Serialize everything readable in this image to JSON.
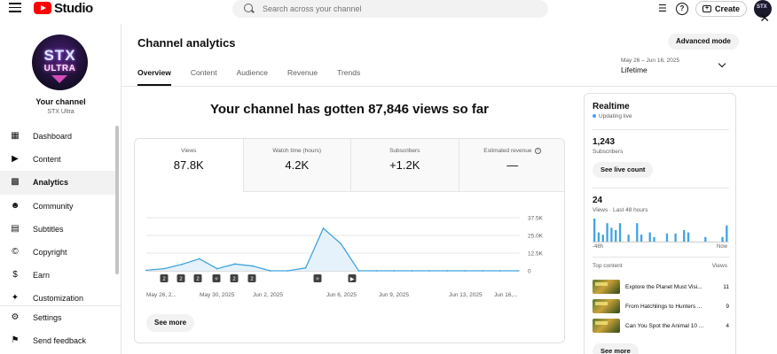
{
  "header": {
    "logo_text": "Studio",
    "search_placeholder": "Search across your channel",
    "create_label": "Create",
    "help_icon": "?"
  },
  "channel": {
    "name": "Your channel",
    "handle": "STX Ultra",
    "avatar_line1": "STX",
    "avatar_line2": "ULTRA"
  },
  "nav": {
    "items": [
      {
        "label": "Dashboard",
        "icon": "dashboard-icon"
      },
      {
        "label": "Content",
        "icon": "content-icon"
      },
      {
        "label": "Analytics",
        "icon": "analytics-icon"
      },
      {
        "label": "Community",
        "icon": "community-icon"
      },
      {
        "label": "Subtitles",
        "icon": "subtitles-icon"
      },
      {
        "label": "Copyright",
        "icon": "copyright-icon"
      },
      {
        "label": "Earn",
        "icon": "earn-icon"
      },
      {
        "label": "Customization",
        "icon": "customization-icon"
      }
    ],
    "bottom": [
      {
        "label": "Settings",
        "icon": "settings-icon"
      },
      {
        "label": "Send feedback",
        "icon": "feedback-icon"
      }
    ]
  },
  "main": {
    "title": "Channel analytics",
    "advanced_label": "Advanced mode",
    "tabs": [
      "Overview",
      "Content",
      "Audience",
      "Revenue",
      "Trends"
    ],
    "date_range": "May 26 – Jun 16, 2025",
    "date_value": "Lifetime",
    "headline": "Your channel has gotten 87,846 views so far"
  },
  "metrics": [
    {
      "label": "Views",
      "value": "87.8K"
    },
    {
      "label": "Watch time (hours)",
      "value": "4.2K"
    },
    {
      "label": "Subscribers",
      "value": "+1.2K"
    },
    {
      "label": "Estimated revenue",
      "value": "—"
    }
  ],
  "chart_data": {
    "type": "area",
    "y_ticks": [
      "37.5K",
      "25.0K",
      "12.5K",
      "0"
    ],
    "x_ticks": [
      "May 26, 2...",
      "May 30, 2025",
      "Jun 2, 2025",
      "Jun 6, 2025",
      "Jun 9, 2025",
      "Jun 13, 2025",
      "Jun 16,..."
    ],
    "ylim": [
      0,
      37500
    ],
    "values": [
      400,
      1500,
      4500,
      8500,
      1500,
      4800,
      3400,
      0,
      0,
      2000,
      30000,
      19000,
      0,
      0,
      0,
      0,
      0,
      0,
      0,
      0,
      0,
      0
    ],
    "markers": [
      "2",
      "2",
      "2",
      "short",
      "2",
      "2",
      "short",
      "play"
    ],
    "color": "#41a4e0",
    "fill": "#e6f2fb"
  },
  "see_more": "See more",
  "realtime": {
    "title": "Realtime",
    "status": "Updating live",
    "subscribers": "1,243",
    "subscribers_label": "Subscribers",
    "live_count_label": "See live count",
    "views": "24",
    "views_label": "Views · Last 48 hours",
    "bars": [
      1,
      0.4,
      0.3,
      0.8,
      0.6,
      0.5,
      0.8,
      0,
      0.3,
      0,
      0.8,
      0.3,
      0,
      0.4,
      0.2,
      0,
      0,
      0.35,
      0,
      0.35,
      0,
      0.5,
      0.4,
      0,
      0,
      0,
      0.2,
      0,
      0,
      0,
      0.2,
      0.7
    ],
    "bars_color": "#41a4e0",
    "axis_left": "-48h",
    "axis_right": "Now",
    "top_content_label": "Top content",
    "top_content_col": "Views",
    "top_content": [
      {
        "title": "Explore the Planet Must Visi...",
        "views": "11"
      },
      {
        "title": "From Hatchlings to Hunters ...",
        "views": "9"
      },
      {
        "title": "Can You Spot the Animal 10 ...",
        "views": "4"
      }
    ],
    "see_more": "See more"
  }
}
